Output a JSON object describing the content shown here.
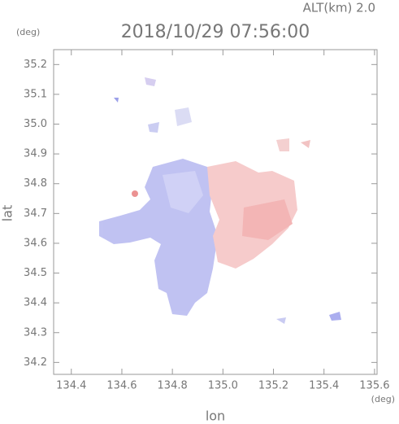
{
  "chart_data": {
    "type": "map",
    "title": "2018/10/29 07:56:00",
    "subtitle": "ALT(km) 2.0",
    "y_unit": "(deg)",
    "x_unit": "(deg)",
    "x_label": "lon",
    "y_label": "lat",
    "xlim": [
      134.33,
      135.61
    ],
    "ylim": [
      34.16,
      35.25
    ],
    "xticks": [
      134.4,
      134.6,
      134.8,
      {
        "value": 135,
        "label": "135.0"
      },
      135.2,
      135.4,
      135.6
    ],
    "yticks": [
      34.2,
      34.3,
      34.4,
      34.5,
      34.6,
      34.7,
      34.8,
      34.9,
      {
        "value": 35,
        "label": "35.0"
      },
      35.1,
      35.2
    ]
  }
}
